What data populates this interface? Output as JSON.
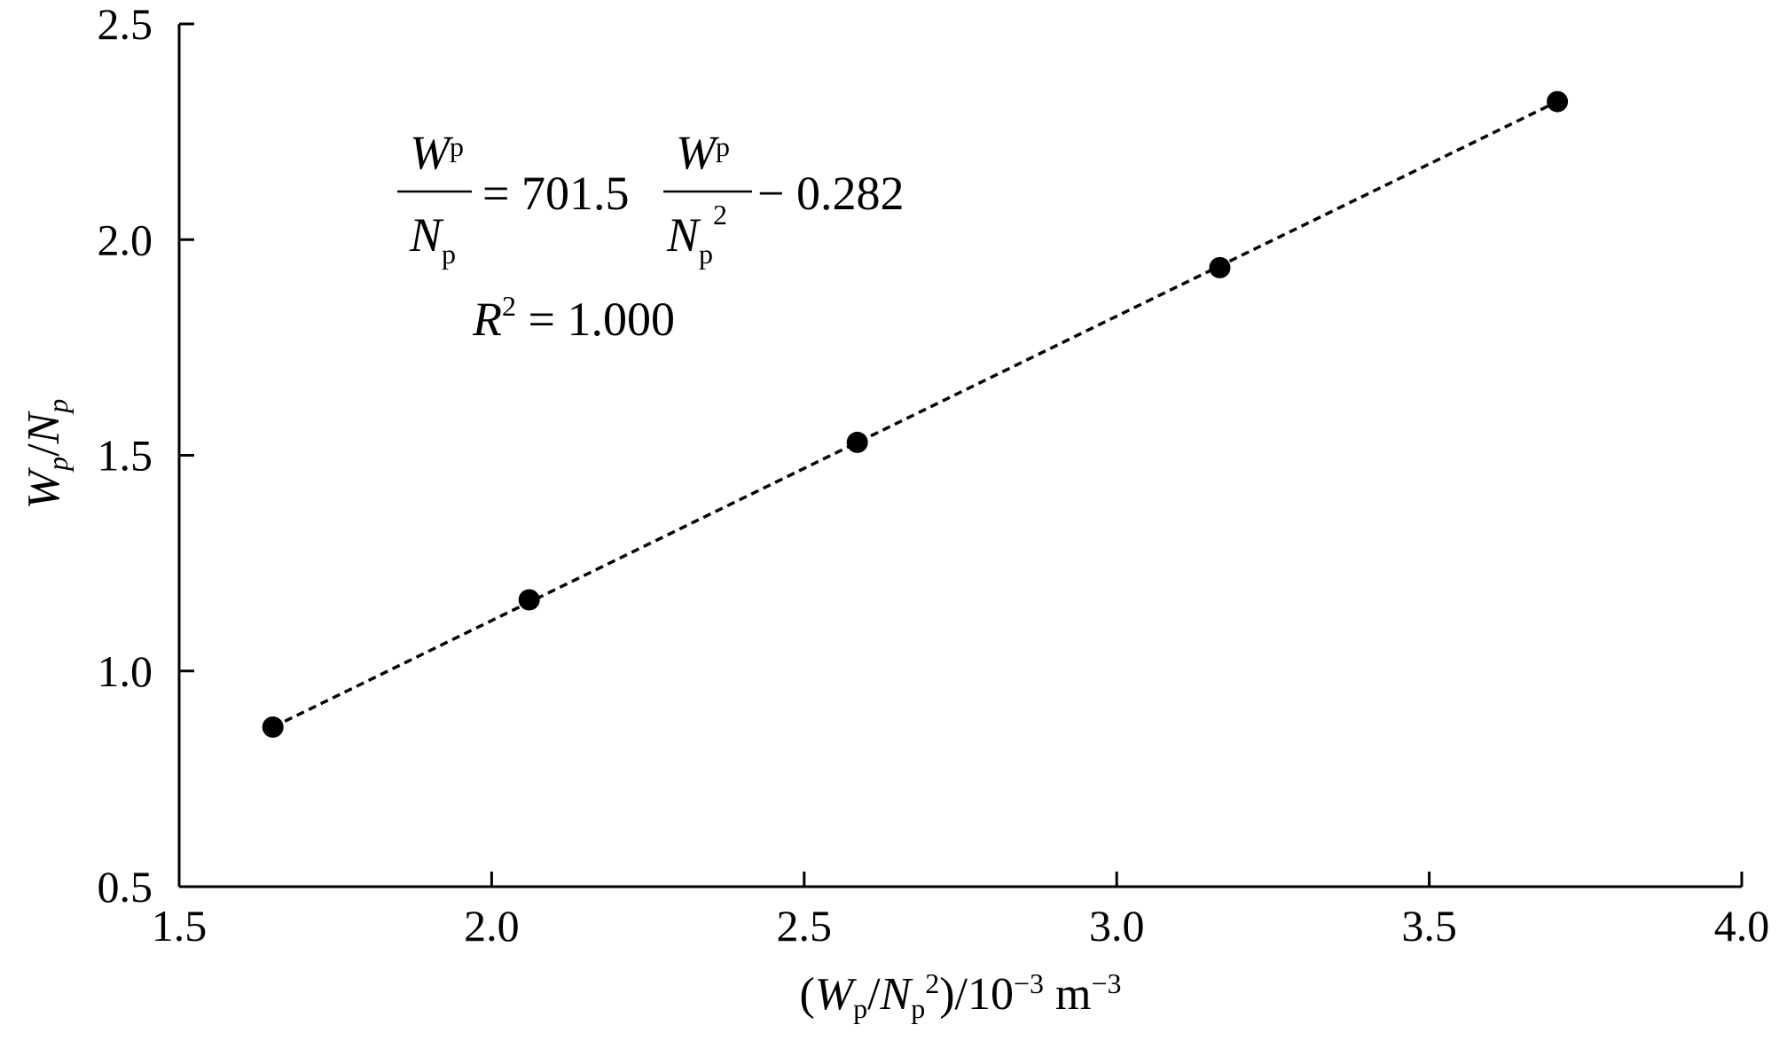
{
  "chart_data": {
    "type": "scatter",
    "xlabel": {
      "open": "(",
      "num_sym": "W",
      "num_sub": "p",
      "slash": "/",
      "den_sym": "N",
      "den_sub": "p",
      "den_sup": "2",
      "close": ")/10",
      "exp1": "−3",
      "unit": " m",
      "exp2": "−3"
    },
    "ylabel": {
      "num_sym": "W",
      "num_sub": "p",
      "slash": "/",
      "den_sym": "N",
      "den_sub": "p"
    },
    "xlim": [
      1.5,
      4.0
    ],
    "ylim": [
      0.5,
      2.5
    ],
    "x_ticks": [
      "1.5",
      "2.0",
      "2.5",
      "3.0",
      "3.5",
      "4.0"
    ],
    "y_ticks": [
      "0.5",
      "1.0",
      "1.5",
      "2.0",
      "2.5"
    ],
    "x_tick_values": [
      1.5,
      2.0,
      2.5,
      3.0,
      3.5,
      4.0
    ],
    "y_tick_values": [
      0.5,
      1.0,
      1.5,
      2.0,
      2.5
    ],
    "series": [
      {
        "points": [
          {
            "x": 1.65,
            "y": 0.87
          },
          {
            "x": 2.06,
            "y": 1.165
          },
          {
            "x": 2.585,
            "y": 1.53
          },
          {
            "x": 3.165,
            "y": 1.935
          },
          {
            "x": 3.705,
            "y": 2.32
          }
        ],
        "marker": "filled-circle",
        "color": "#000000"
      }
    ],
    "fit_line": {
      "style": "dashed",
      "x_range": [
        1.65,
        3.705
      ],
      "slope": 701.5,
      "intercept": -0.282
    },
    "annotation": {
      "lhs_num_sym": "W",
      "lhs_num_sub": "p",
      "lhs_den_sym": "N",
      "lhs_den_sub": "p",
      "equals_coef": "= 701.5",
      "rhs_num_sym": "W",
      "rhs_num_sub": "p",
      "rhs_den_sym": "N",
      "rhs_den_sub": "p",
      "rhs_den_sup": "2",
      "intercept_text": "− 0.282",
      "r2_sym": "R",
      "r2_sup": "2",
      "r2_value": " = 1.000"
    },
    "grid": false
  }
}
